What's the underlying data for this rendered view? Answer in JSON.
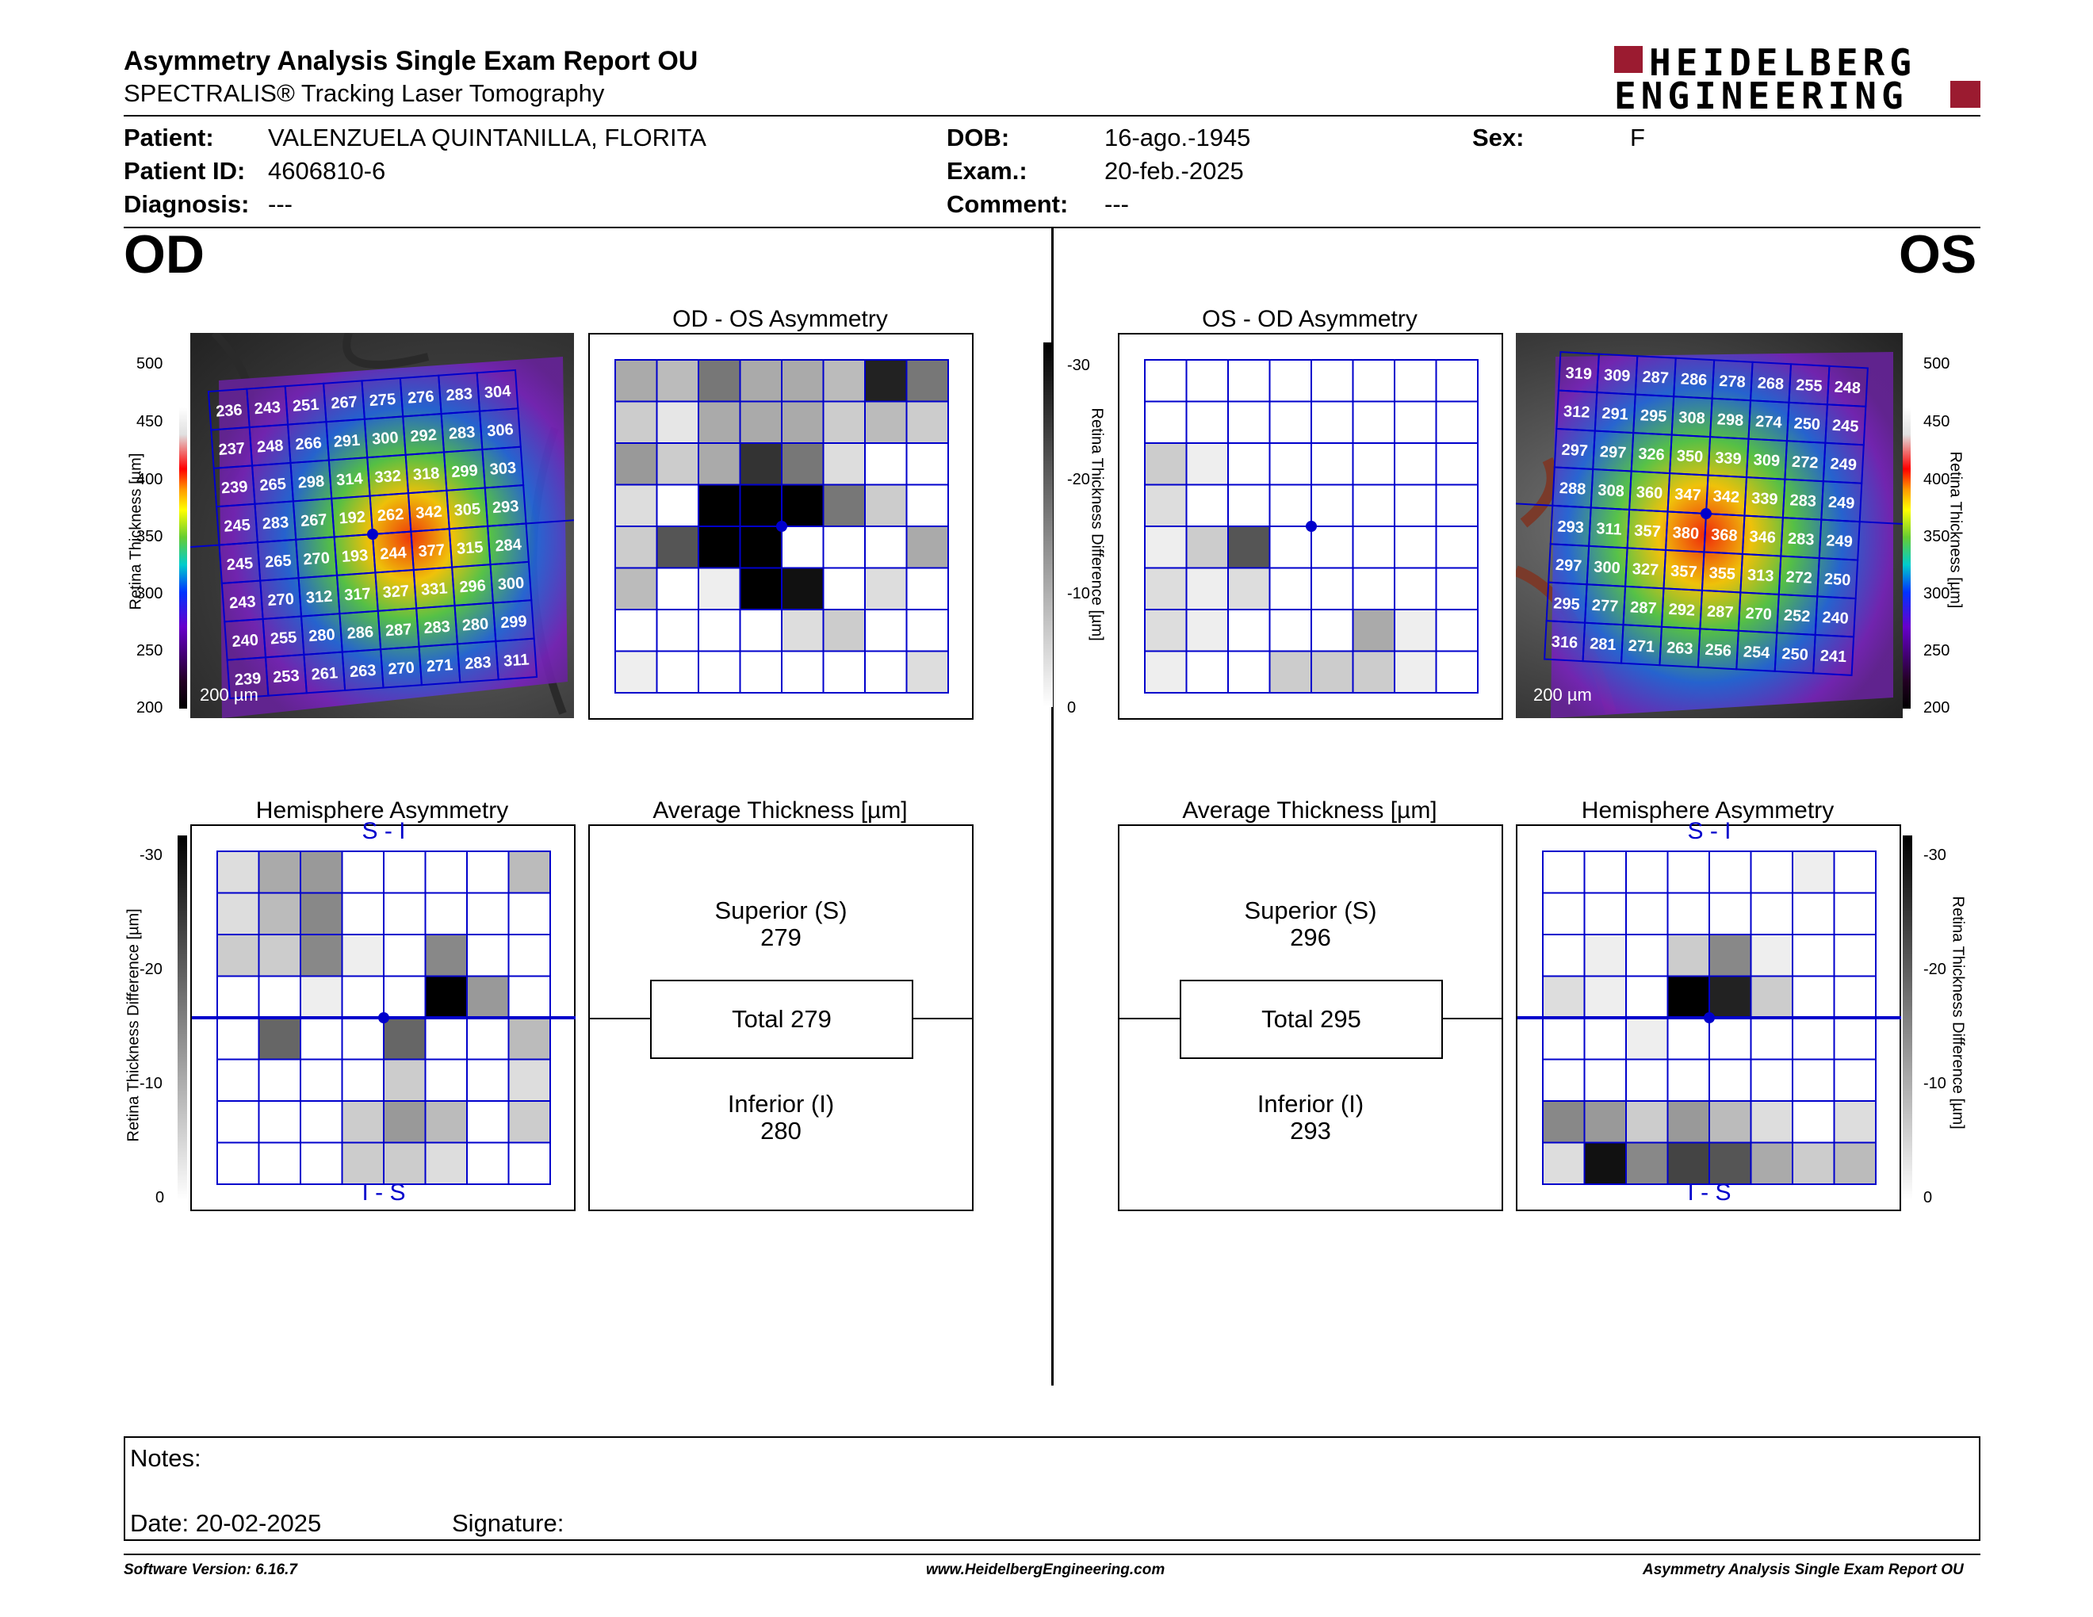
{
  "header": {
    "title": "Asymmetry Analysis Single Exam Report OU",
    "subtitle": "SPECTRALIS® Tracking Laser Tomography",
    "logo_line1": "HEIDELBERG",
    "logo_line2": "ENGINEERING"
  },
  "patient": {
    "patient_label": "Patient:",
    "patient_value": "VALENZUELA QUINTANILLA, FLORITA",
    "id_label": "Patient ID:",
    "id_value": "4606810-6",
    "diagnosis_label": "Diagnosis:",
    "diagnosis_value": "---",
    "dob_label": "DOB:",
    "dob_value": "16-ago.-1945",
    "exam_label": "Exam.:",
    "exam_value": "20-feb.-2025",
    "comment_label": "Comment:",
    "comment_value": "---",
    "sex_label": "Sex:",
    "sex_value": "F"
  },
  "od": {
    "eye_label": "OD",
    "asymmetry_title": "OD - OS Asymmetry",
    "hemisphere_title": "Hemisphere Asymmetry",
    "hemi_top": "S - I",
    "hemi_bottom": "I - S",
    "avg_title": "Average Thickness [µm]",
    "superior_label": "Superior (S)",
    "superior_value": "279",
    "total_label": "Total 279",
    "inferior_label": "Inferior (I)",
    "inferior_value": "280",
    "scale_bar": "200 µm",
    "thickness_grid": [
      [
        236,
        243,
        251,
        267,
        275,
        276,
        283,
        304
      ],
      [
        237,
        248,
        266,
        291,
        300,
        292,
        283,
        306
      ],
      [
        239,
        265,
        298,
        314,
        332,
        318,
        299,
        303
      ],
      [
        245,
        283,
        267,
        192,
        262,
        342,
        305,
        293
      ],
      [
        245,
        265,
        270,
        193,
        244,
        377,
        315,
        284
      ],
      [
        243,
        270,
        312,
        317,
        327,
        331,
        296,
        300
      ],
      [
        240,
        255,
        280,
        286,
        287,
        283,
        280,
        299
      ],
      [
        239,
        253,
        261,
        263,
        270,
        271,
        283,
        311
      ]
    ],
    "asymmetry_grid": [
      [
        10,
        8,
        16,
        10,
        10,
        8,
        26,
        16
      ],
      [
        6,
        3,
        10,
        10,
        10,
        6,
        8,
        6
      ],
      [
        12,
        6,
        10,
        24,
        16,
        4,
        0,
        0
      ],
      [
        4,
        0,
        30,
        30,
        30,
        16,
        6,
        0
      ],
      [
        6,
        20,
        30,
        30,
        0,
        0,
        0,
        10
      ],
      [
        8,
        0,
        2,
        30,
        28,
        0,
        4,
        0
      ],
      [
        0,
        0,
        0,
        0,
        4,
        6,
        0,
        0
      ],
      [
        2,
        0,
        0,
        0,
        0,
        0,
        0,
        4
      ]
    ],
    "hemi_grid": [
      [
        4,
        10,
        12,
        0,
        0,
        0,
        0,
        8
      ],
      [
        4,
        8,
        14,
        0,
        0,
        0,
        0,
        0
      ],
      [
        6,
        6,
        14,
        2,
        0,
        14,
        0,
        0
      ],
      [
        0,
        0,
        2,
        0,
        0,
        30,
        12,
        0
      ],
      [
        0,
        18,
        0,
        0,
        18,
        0,
        0,
        8
      ],
      [
        0,
        0,
        0,
        0,
        6,
        0,
        0,
        4
      ],
      [
        0,
        0,
        0,
        6,
        12,
        8,
        0,
        6
      ],
      [
        0,
        0,
        0,
        6,
        6,
        4,
        0,
        0
      ]
    ]
  },
  "os": {
    "eye_label": "OS",
    "asymmetry_title": "OS - OD Asymmetry",
    "hemisphere_title": "Hemisphere Asymmetry",
    "hemi_top": "S - I",
    "hemi_bottom": "I - S",
    "avg_title": "Average Thickness [µm]",
    "superior_label": "Superior (S)",
    "superior_value": "296",
    "total_label": "Total 295",
    "inferior_label": "Inferior (I)",
    "inferior_value": "293",
    "scale_bar": "200 µm",
    "thickness_grid": [
      [
        319,
        309,
        287,
        286,
        278,
        268,
        255,
        248
      ],
      [
        312,
        291,
        295,
        308,
        298,
        274,
        250,
        245
      ],
      [
        297,
        297,
        326,
        350,
        339,
        309,
        272,
        249
      ],
      [
        288,
        308,
        360,
        347,
        342,
        339,
        283,
        249
      ],
      [
        293,
        311,
        357,
        380,
        368,
        346,
        283,
        249
      ],
      [
        297,
        300,
        327,
        357,
        355,
        313,
        272,
        250
      ],
      [
        295,
        277,
        287,
        292,
        287,
        270,
        252,
        240
      ],
      [
        316,
        281,
        271,
        263,
        256,
        254,
        250,
        241
      ]
    ],
    "asymmetry_grid": [
      [
        0,
        0,
        0,
        0,
        0,
        0,
        0,
        0
      ],
      [
        0,
        0,
        0,
        0,
        0,
        0,
        0,
        0
      ],
      [
        6,
        2,
        0,
        0,
        0,
        0,
        0,
        0
      ],
      [
        4,
        0,
        0,
        0,
        0,
        0,
        0,
        0
      ],
      [
        2,
        6,
        20,
        0,
        0,
        0,
        0,
        0
      ],
      [
        4,
        2,
        4,
        0,
        0,
        0,
        0,
        0
      ],
      [
        4,
        2,
        0,
        0,
        0,
        10,
        2,
        0
      ],
      [
        2,
        0,
        0,
        6,
        6,
        6,
        2,
        0
      ]
    ],
    "hemi_grid": [
      [
        0,
        0,
        0,
        0,
        0,
        0,
        2,
        0
      ],
      [
        0,
        0,
        0,
        0,
        0,
        0,
        0,
        0
      ],
      [
        0,
        2,
        0,
        6,
        14,
        2,
        0,
        0
      ],
      [
        4,
        2,
        0,
        30,
        26,
        6,
        0,
        0
      ],
      [
        0,
        0,
        2,
        0,
        0,
        0,
        0,
        0
      ],
      [
        0,
        0,
        0,
        0,
        0,
        0,
        0,
        0
      ],
      [
        14,
        12,
        6,
        12,
        8,
        4,
        0,
        4
      ],
      [
        4,
        28,
        14,
        22,
        20,
        10,
        6,
        8
      ]
    ]
  },
  "scales": {
    "thickness_ticks": [
      "500",
      "450",
      "400",
      "350",
      "300",
      "250",
      "200"
    ],
    "thickness_label": "Retina Thickness [µm]",
    "diff_ticks": [
      "-30",
      "-20",
      "-10",
      "0"
    ],
    "diff_label": "Retina Thickness Difference [µm]"
  },
  "notes": {
    "notes_label": "Notes:",
    "date_label": "Date: 20-02-2025",
    "signature_label": "Signature:"
  },
  "footer": {
    "software": "Software Version: 6.16.7",
    "website": "www.HeidelbergEngineering.com",
    "report": "Asymmetry Analysis Single Exam Report OU"
  },
  "colors": {
    "grid_blue": "#0000cc",
    "logo_red": "#9b1b30"
  }
}
